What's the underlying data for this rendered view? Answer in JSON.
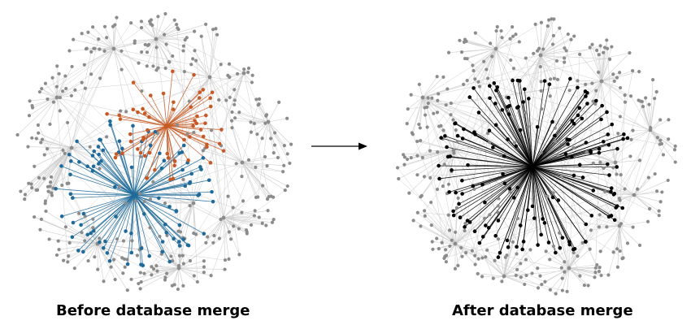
{
  "panels": [
    {
      "caption": "Before database merge",
      "hubs": [
        {
          "color": "#1f6a99",
          "leaves": 95
        },
        {
          "color": "#c65a26",
          "leaves": 60
        }
      ],
      "background_node_color": "#8c8c8c",
      "background_edge_color": "#cfcfcf"
    },
    {
      "caption": "After database merge",
      "hubs": [
        {
          "color": "#000000",
          "leaves": 155
        }
      ],
      "background_node_color": "#8c8c8c",
      "background_edge_color": "#cfcfcf"
    }
  ],
  "transition_arrow": "→"
}
